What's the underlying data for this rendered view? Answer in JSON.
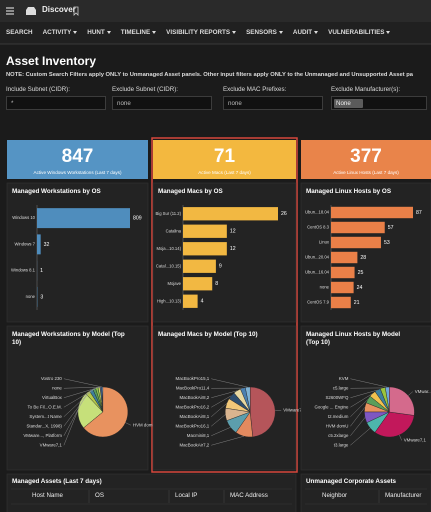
{
  "header": {
    "app": "Discover"
  },
  "nav": [
    "SEARCH",
    "ACTIVITY",
    "HUNT",
    "TIMELINE",
    "VISIBILITY REPORTS",
    "SENSORS",
    "AUDIT",
    "VULNERABILITIES"
  ],
  "page": {
    "title": "Asset Inventory",
    "note": "NOTE: Custom Search Filters apply ONLY to Unmanaged Asset panels. Other input filters apply ONLY to the Unmanaged and Unsupported Asset pa"
  },
  "filters": [
    {
      "label": "Include Subnet (CIDR):",
      "value": "*"
    },
    {
      "label": "Exclude Subnet (CIDR):",
      "value": "none"
    },
    {
      "label": "Exclude MAC Prefixes:",
      "value": "none"
    },
    {
      "label": "Exclude Manufacturer(s):",
      "value": "None"
    }
  ],
  "kpis": [
    {
      "value": 847,
      "label": "Active Windows Workstations (Last 7 days)",
      "color": "#5594c4"
    },
    {
      "value": 71,
      "label": "Active Macs (Last 7 days)",
      "color": "#f3b83f"
    },
    {
      "value": 377,
      "label": "Active Linux Hosts (Last 7 days)",
      "color": "#e9844a"
    }
  ],
  "chart_data": [
    {
      "type": "bar",
      "orientation": "horizontal",
      "title": "Managed Workstations by OS",
      "color": "#4f8dbd",
      "categories": [
        "Windows 10",
        "Windows 7",
        "Windows 8.1",
        "none"
      ],
      "values": [
        809,
        32,
        1,
        3
      ]
    },
    {
      "type": "bar",
      "orientation": "horizontal",
      "title": "Managed Macs by OS",
      "color": "#f2b842",
      "categories": [
        "Big Sur (11.2)",
        "Catalina",
        "Moja...10.14)",
        "Catal...10.15)",
        "Mojave",
        "High...10.13)"
      ],
      "values": [
        26,
        12,
        12,
        9,
        8,
        4
      ]
    },
    {
      "type": "bar",
      "orientation": "horizontal",
      "title": "Managed Linux Hosts by OS",
      "color": "#ea8048",
      "categories": [
        "Ubun...18.04",
        "CentOS 8.3",
        "Linux",
        "Ubun...20.04",
        "Ubun...16.04",
        "none",
        "CentOS 7.9"
      ],
      "values": [
        87,
        57,
        53,
        28,
        25,
        24,
        21
      ]
    },
    {
      "type": "pie",
      "title": "Managed Workstations by Model (Top 10)",
      "categories": [
        "Vostro 230",
        "none",
        "VirtualBox",
        "To Be Fil...O.E.M.",
        "System...t Name",
        "Standar...X, 1998)",
        "VMware..., Platform",
        "VMware7,1",
        "HVM domU"
      ],
      "values": [
        6,
        8,
        10,
        12,
        14,
        18,
        22,
        180,
        480
      ],
      "colors": [
        "#6fa8dc",
        "#4a6fa5",
        "#c9d86a",
        "#8bc34a",
        "#5a9e5a",
        "#3d7f9c",
        "#b5c94b",
        "#c6e07a",
        "#e8925f"
      ]
    },
    {
      "type": "pie",
      "title": "Managed Macs by Model (Top 10)",
      "categories": [
        "MacBookPro15,1",
        "MacBookPro11,4",
        "MacBookAir8,2",
        "MacBookPro16,2",
        "MacBookAir8,1",
        "MacBookPro16,1",
        "Macmini8,1",
        "MacBookAir7,2",
        "VMware7,1"
      ],
      "values": [
        2,
        2,
        3,
        3,
        4,
        5,
        6,
        7,
        30
      ],
      "colors": [
        "#7fb3d5",
        "#4a7fb0",
        "#e8d8a0",
        "#2f4f6f",
        "#f2c879",
        "#d9b48f",
        "#5c9ead",
        "#e38a5f",
        "#b5555a"
      ]
    },
    {
      "type": "pie",
      "title": "Managed Linux Hosts by Model (Top 10)",
      "categories": [
        "KVM",
        "c5.large",
        "S2600WFQ",
        "Google ... Engine",
        "t2.medium",
        "HVM domU",
        "c5.2xlarge",
        "t3.large",
        "VMware7,1",
        "VMwar...tform"
      ],
      "values": [
        10,
        12,
        14,
        16,
        18,
        22,
        26,
        30,
        120,
        100
      ],
      "colors": [
        "#6fa8dc",
        "#9bc53d",
        "#3d7f9c",
        "#f2c14e",
        "#5a9e5a",
        "#e8925f",
        "#7e57c2",
        "#4db6ac",
        "#c2185b",
        "#d46a8c"
      ]
    }
  ],
  "tables": [
    {
      "title": "Managed Assets (Last 7 days)",
      "columns": [
        "Host Name",
        "OS",
        "Local IP",
        "MAC Address"
      ]
    },
    {
      "title": "Unmanaged Corporate Assets",
      "columns": [
        "Neighbor",
        "Manufacturer"
      ]
    }
  ]
}
